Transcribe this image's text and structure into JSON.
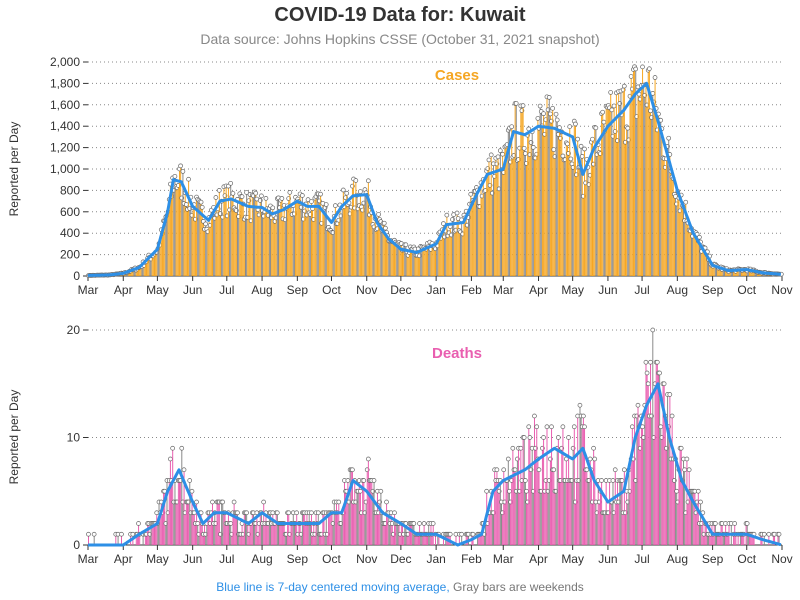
{
  "header": {
    "title": "COVID-19 Data for: Kuwait",
    "subtitle": "Data source: Johns Hopkins CSSE (October 31, 2021 snapshot)"
  },
  "footnote": {
    "blue_part": "Blue line is 7-day centered moving average,",
    "gray_part": "Gray bars are weekends"
  },
  "colors": {
    "cases_bar": "#f5a623",
    "deaths_bar": "#e95fb0",
    "moving_average": "#2d8fe6",
    "cases_title": "#f5a623",
    "deaths_title": "#e95fb0",
    "weekend_bar": "#8a8a8a"
  },
  "chart_data": [
    {
      "type": "bar",
      "title": "Cases",
      "ylabel": "Reported per Day",
      "ylim": [
        0,
        2000
      ],
      "yticks": [
        "0",
        "200",
        "400",
        "600",
        "800",
        "1,000",
        "1,200",
        "1,400",
        "1,600",
        "1,800",
        "2,000"
      ],
      "x_tick_labels": [
        "Mar",
        "Apr",
        "May",
        "Jun",
        "Jul",
        "Aug",
        "Sep",
        "Oct",
        "Nov",
        "Dec",
        "Jan",
        "Feb",
        "Mar",
        "Apr",
        "May",
        "Jun",
        "Jul",
        "Aug",
        "Sep",
        "Oct",
        "Nov"
      ],
      "grid": "horizontal dotted",
      "series": [
        {
          "name": "7-day centered moving average",
          "anchor_dates": [
            "2020-03-01",
            "2020-03-20",
            "2020-04-01",
            "2020-04-15",
            "2020-05-01",
            "2020-05-10",
            "2020-05-15",
            "2020-05-22",
            "2020-06-01",
            "2020-06-15",
            "2020-06-25",
            "2020-07-05",
            "2020-07-20",
            "2020-08-01",
            "2020-08-10",
            "2020-08-20",
            "2020-09-01",
            "2020-09-10",
            "2020-09-20",
            "2020-10-01",
            "2020-10-10",
            "2020-10-20",
            "2020-11-01",
            "2020-11-10",
            "2020-11-20",
            "2020-12-01",
            "2020-12-15",
            "2021-01-01",
            "2021-01-10",
            "2021-01-25",
            "2021-02-05",
            "2021-02-15",
            "2021-03-01",
            "2021-03-10",
            "2021-03-20",
            "2021-04-01",
            "2021-04-15",
            "2021-05-01",
            "2021-05-10",
            "2021-05-20",
            "2021-06-01",
            "2021-06-15",
            "2021-06-25",
            "2021-07-05",
            "2021-07-15",
            "2021-08-01",
            "2021-08-15",
            "2021-09-01",
            "2021-09-15",
            "2021-10-01",
            "2021-10-15",
            "2021-11-01"
          ],
          "anchor_values": [
            5,
            10,
            25,
            80,
            250,
            600,
            900,
            880,
            650,
            520,
            700,
            720,
            650,
            640,
            580,
            620,
            700,
            650,
            650,
            500,
            650,
            750,
            760,
            500,
            350,
            250,
            220,
            300,
            480,
            500,
            750,
            950,
            1000,
            1350,
            1320,
            1400,
            1380,
            1300,
            950,
            1200,
            1400,
            1550,
            1700,
            1800,
            1450,
            800,
            400,
            100,
            50,
            60,
            30,
            15
          ]
        }
      ]
    },
    {
      "type": "bar",
      "title": "Deaths",
      "ylabel": "Reported per Day",
      "ylim": [
        0,
        20
      ],
      "yticks": [
        "0",
        "10",
        "20"
      ],
      "x_tick_labels": [
        "Mar",
        "Apr",
        "May",
        "Jun",
        "Jul",
        "Aug",
        "Sep",
        "Oct",
        "Nov",
        "Dec",
        "Jan",
        "Feb",
        "Mar",
        "Apr",
        "May",
        "Jun",
        "Jul",
        "Aug",
        "Sep",
        "Oct",
        "Nov"
      ],
      "grid": "horizontal dotted",
      "series": [
        {
          "name": "7-day centered moving average",
          "anchor_dates": [
            "2020-03-01",
            "2020-04-01",
            "2020-04-15",
            "2020-05-01",
            "2020-05-10",
            "2020-05-20",
            "2020-06-01",
            "2020-06-10",
            "2020-06-20",
            "2020-07-01",
            "2020-07-20",
            "2020-08-01",
            "2020-08-15",
            "2020-09-01",
            "2020-09-20",
            "2020-10-01",
            "2020-10-10",
            "2020-10-20",
            "2020-11-01",
            "2020-11-15",
            "2020-12-01",
            "2020-12-15",
            "2021-01-01",
            "2021-01-20",
            "2021-02-01",
            "2021-02-10",
            "2021-02-20",
            "2021-03-01",
            "2021-03-20",
            "2021-04-01",
            "2021-04-15",
            "2021-05-01",
            "2021-05-10",
            "2021-05-20",
            "2021-06-01",
            "2021-06-15",
            "2021-06-25",
            "2021-07-05",
            "2021-07-15",
            "2021-07-25",
            "2021-08-05",
            "2021-08-15",
            "2021-09-01",
            "2021-09-15",
            "2021-10-01",
            "2021-10-15",
            "2021-11-01"
          ],
          "anchor_values": [
            0,
            0,
            1,
            2,
            5,
            7,
            4,
            2,
            3,
            3,
            2,
            3,
            2,
            2,
            2,
            3,
            3,
            6,
            5,
            3,
            2,
            1,
            1,
            0,
            0.5,
            1,
            5,
            6,
            7,
            8,
            9,
            8,
            9,
            6,
            4,
            5,
            10,
            13,
            15,
            10,
            6,
            4,
            1,
            1,
            1,
            0.5,
            0
          ]
        }
      ]
    }
  ]
}
